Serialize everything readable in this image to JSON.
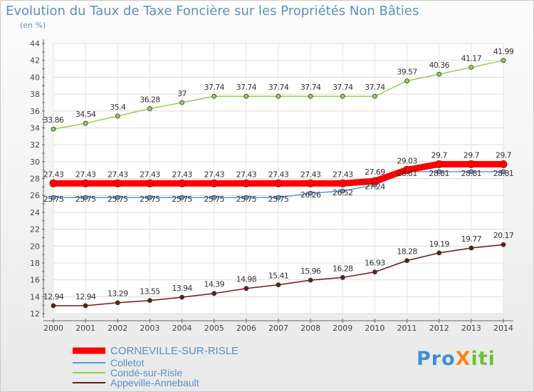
{
  "title": "Evolution du Taux de Taxe Foncière sur les Propriétés Non Bâties",
  "subtitle": "(en %)",
  "logo": {
    "text": "ProXiti"
  },
  "chart_data": {
    "type": "line",
    "title": "Evolution du Taux de Taxe Foncière sur les Propriétés Non Bâties",
    "ylabel": "(en %)",
    "xlabel": "",
    "x": [
      2000,
      2001,
      2002,
      2003,
      2004,
      2005,
      2006,
      2007,
      2008,
      2009,
      2010,
      2011,
      2012,
      2013,
      2014
    ],
    "ylim": [
      12,
      44
    ],
    "yticks": [
      12,
      14,
      16,
      18,
      20,
      22,
      24,
      26,
      28,
      30,
      32,
      34,
      36,
      38,
      40,
      42,
      44
    ],
    "grid": true,
    "legend": "bottom-left",
    "series": [
      {
        "name": "CORNEVILLE-SUR-RISLE",
        "color": "#ff0000",
        "width": 9,
        "values": [
          27.43,
          27.43,
          27.43,
          27.43,
          27.43,
          27.43,
          27.43,
          27.43,
          27.43,
          27.43,
          27.69,
          29.03,
          29.7,
          29.7,
          29.7
        ],
        "labels": [
          "27.43",
          "27.43",
          "27.43",
          "27.43",
          "27.43",
          "27.43",
          "27.43",
          "27.43",
          "27.43",
          "27.43",
          "27.69",
          "29.03",
          "29.7",
          "29.7",
          "29.7"
        ]
      },
      {
        "name": "Colletot",
        "color": "#5b9bd5",
        "width": 1.5,
        "values": [
          25.75,
          25.75,
          25.75,
          25.75,
          25.75,
          25.75,
          25.75,
          25.75,
          26.26,
          26.52,
          27.24,
          28.81,
          28.81,
          28.81,
          28.81
        ],
        "labels": [
          "25.75",
          "25.75",
          "25.75",
          "25.75",
          "25.75",
          "25.75",
          "25.75",
          "25.75",
          "26.26",
          "26.52",
          "27.24",
          "28.81",
          "28.81",
          "28.81",
          "28.81"
        ]
      },
      {
        "name": "Condé-sur-Risle",
        "color": "#92d050",
        "width": 1.5,
        "values": [
          33.86,
          34.54,
          35.4,
          36.28,
          37,
          37.74,
          37.74,
          37.74,
          37.74,
          37.74,
          37.74,
          39.57,
          40.36,
          41.17,
          41.99
        ],
        "labels": [
          "33.86",
          "34.54",
          "35.4",
          "36.28",
          "37",
          "37.74",
          "37.74",
          "37.74",
          "37.74",
          "37.74",
          "37.74",
          "39.57",
          "40.36",
          "41.17",
          "41.99"
        ]
      },
      {
        "name": "Appeville-Annebault",
        "color": "#6b1a1a",
        "width": 1.5,
        "values": [
          12.94,
          12.94,
          13.29,
          13.55,
          13.94,
          14.39,
          14.98,
          15.41,
          15.96,
          16.28,
          16.93,
          18.28,
          19.19,
          19.77,
          20.17
        ],
        "labels": [
          "12.94",
          "12.94",
          "13.29",
          "13.55",
          "13.94",
          "14.39",
          "14.98",
          "15.41",
          "15.96",
          "16.28",
          "16.93",
          "18.28",
          "19.19",
          "19.77",
          "20.17"
        ]
      }
    ]
  }
}
